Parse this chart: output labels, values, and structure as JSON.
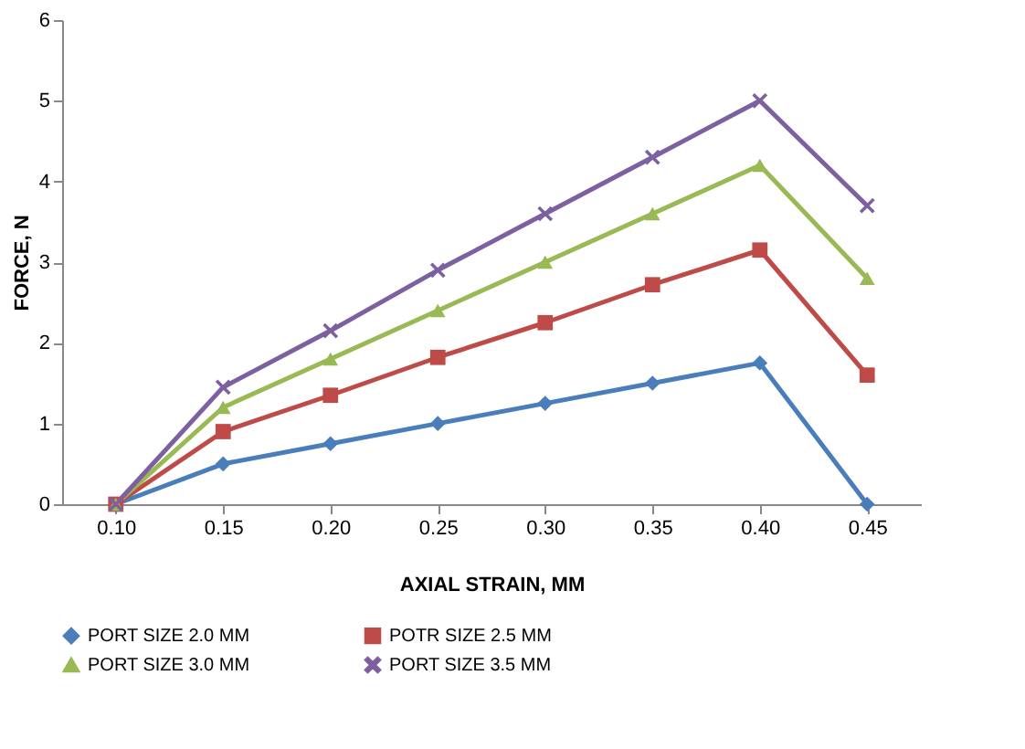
{
  "chart_data": {
    "type": "line",
    "xlabel": "AXIAL STRAIN, MM",
    "ylabel": "FORCE, N",
    "categories": [
      "0.10",
      "0.15",
      "0.20",
      "0.25",
      "0.30",
      "0.35",
      "0.40",
      "0.45"
    ],
    "series": [
      {
        "name": "PORT SIZE 2.0 MM",
        "color": "#4a7ebb",
        "marker": "diamond",
        "values": [
          0,
          0.5,
          0.75,
          1.0,
          1.25,
          1.5,
          1.75,
          0
        ]
      },
      {
        "name": "POTR SIZE 2.5 MM",
        "color": "#be4b48",
        "marker": "square",
        "values": [
          0,
          0.9,
          1.35,
          1.82,
          2.25,
          2.72,
          3.15,
          1.6
        ]
      },
      {
        "name": "PORT SIZE 3.0 MM",
        "color": "#98b954",
        "marker": "triangle",
        "values": [
          0,
          1.2,
          1.8,
          2.4,
          3.0,
          3.6,
          4.2,
          2.8
        ]
      },
      {
        "name": "PORT SIZE 3.5 MM",
        "color": "#7d60a0",
        "marker": "cross",
        "values": [
          0,
          1.45,
          2.15,
          2.9,
          3.6,
          4.3,
          5.0,
          3.7
        ]
      }
    ],
    "ylim": [
      0,
      6
    ],
    "yticks": [
      0,
      1,
      2,
      3,
      4,
      5,
      6
    ],
    "grid": false,
    "legend": "bottom",
    "line_style": "solid"
  }
}
